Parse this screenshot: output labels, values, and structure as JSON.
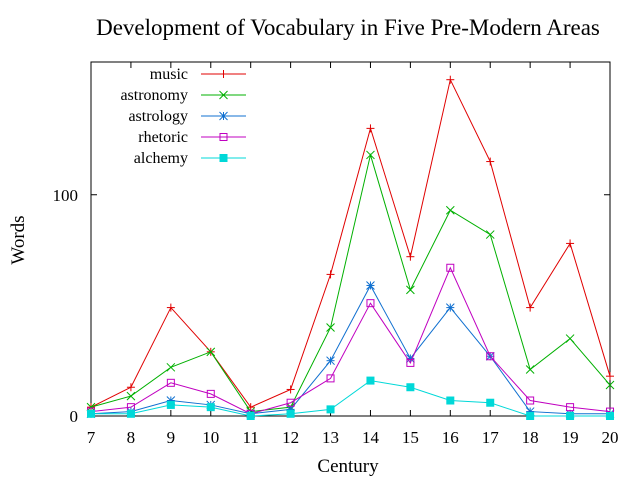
{
  "chart_data": {
    "type": "line",
    "title": "Development of Vocabulary in Five Pre-Modern Areas",
    "xlabel": "Century",
    "ylabel": "Words",
    "x": [
      7,
      8,
      9,
      10,
      11,
      12,
      13,
      14,
      15,
      16,
      17,
      18,
      19,
      20
    ],
    "xlim": [
      7,
      20
    ],
    "ylim": [
      0,
      160
    ],
    "yticks": [
      0,
      100
    ],
    "grid": false,
    "legend": "top-left",
    "series": [
      {
        "name": "music",
        "color": "#e00000",
        "marker": "plus",
        "values": [
          4,
          13,
          49,
          29,
          4,
          12,
          64,
          130,
          72,
          152,
          115,
          49,
          78,
          18
        ]
      },
      {
        "name": "astronomy",
        "color": "#00b000",
        "marker": "cross",
        "values": [
          4,
          9,
          22,
          29,
          2,
          4,
          40,
          118,
          57,
          93,
          82,
          21,
          35,
          14
        ]
      },
      {
        "name": "astrology",
        "color": "#1070d0",
        "marker": "star",
        "values": [
          1,
          2,
          7,
          5,
          1,
          3,
          25,
          59,
          26,
          49,
          27,
          2,
          1,
          1
        ]
      },
      {
        "name": "rhetoric",
        "color": "#c000c0",
        "marker": "open-square",
        "values": [
          2,
          4,
          15,
          10,
          1,
          6,
          17,
          51,
          24,
          67,
          27,
          7,
          4,
          2
        ]
      },
      {
        "name": "alchemy",
        "color": "#00d8d8",
        "marker": "filled-square",
        "values": [
          1,
          1,
          5,
          4,
          0,
          1,
          3,
          16,
          13,
          7,
          6,
          0,
          0,
          0
        ]
      }
    ]
  }
}
